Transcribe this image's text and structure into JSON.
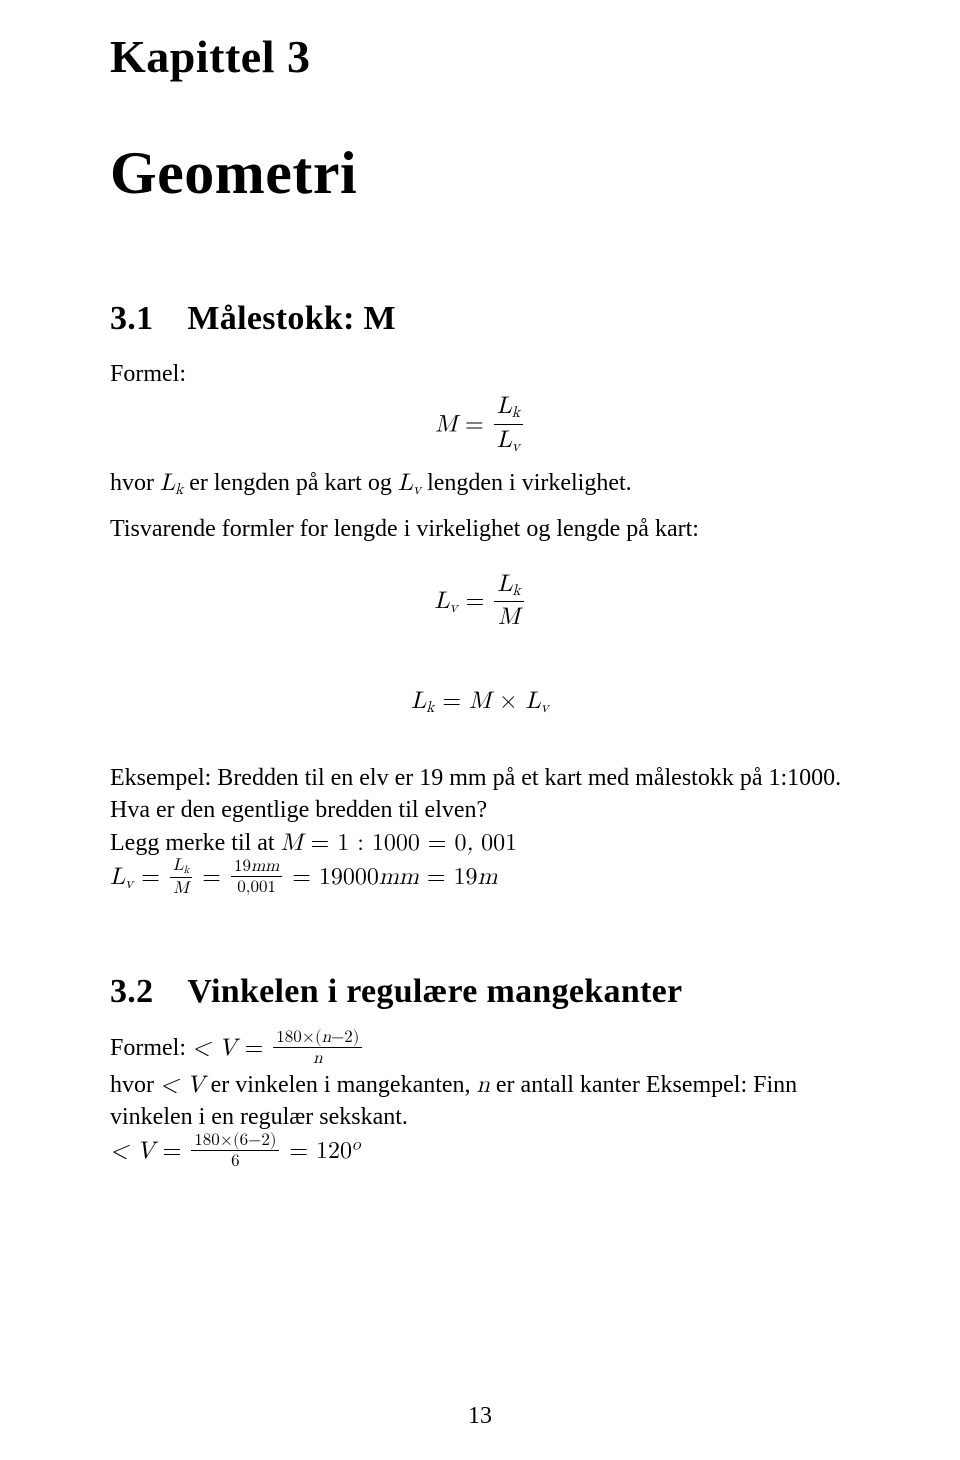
{
  "page": {
    "chapter_label": "Kapittel 3",
    "chapter_title": "Geometri",
    "page_number": "13",
    "background_color": "#ffffff",
    "text_color": "#000000",
    "font_family": "Times New Roman, serif",
    "body_fontsize_pt": 18,
    "heading_fontsize_pt": 26,
    "title_fontsize_pt": 45,
    "label_fontsize_pt": 34
  },
  "section_31": {
    "number": "3.1",
    "title": "Målestokk: M",
    "formel_label": "Formel:",
    "def_formula_html": "M <span class=\"roman\">=</span> <span class=\"frac\"><span class=\"num\">L<sub class=\"msub\">k</sub></span><span class=\"den\">L<sub class=\"msub\">v</sub></span></span>",
    "hvor_text": "hvor <span class=\"formula-inline\">L<sub class=\"msub\">k</sub></span> er lengden på kart og <span class=\"formula-inline\">L<sub class=\"msub\">v</sub></span> lengden i virkelighet.",
    "derived_intro": "Tisvarende formler for lengde i virkelighet og lengde på kart:",
    "derived_formula_1_html": "L<sub class=\"msub\">v</sub> <span class=\"roman\">=</span> <span class=\"frac\"><span class=\"num\">L<sub class=\"msub\">k</sub></span><span class=\"den\">M</span></span>",
    "derived_formula_2_html": "L<sub class=\"msub\">k</sub> <span class=\"roman\">=</span> M <span class=\"roman\">×</span> L<sub class=\"msub\">v</sub>",
    "example_line1": "Eksempel: Bredden til en elv er 19 mm på et kart med målestokk på 1:1000.",
    "example_line2": "Hva er den egentlige bredden til elven?",
    "example_line3_html": "Legg merke til at <span class=\"formula-inline\">M <span class=\"roman\">= 1 : 1000 = 0</span>, <span class=\"roman\">001</span></span>",
    "example_line4_html": "<span class=\"formula-inline\">L<sub class=\"msub\">v</sub> <span class=\"roman\">=</span> <span class=\"frac frac-sm\"><span class=\"num\">L<sub class=\"msub\">k</sub></span><span class=\"den\">M</span></span> <span class=\"roman\">=</span> <span class=\"frac frac-sm\"><span class=\"num\"><span class=\"roman\">19</span>mm</span><span class=\"den\"><span class=\"roman\">0,001</span></span></span> <span class=\"roman\">= 19000</span>mm <span class=\"roman\">= 19</span>m</span>"
  },
  "section_32": {
    "number": "3.2",
    "title": "Vinkelen i regulære mangekanter",
    "formula_line_html": "Formel: <span class=\"formula-inline\">&lt; V <span class=\"roman\">=</span> <span class=\"frac frac-sm\"><span class=\"num\"><span class=\"roman\">180×(</span>n<span class=\"roman\">−2)</span></span><span class=\"den\">n</span></span></span>",
    "body_line1_html": "hvor <span class=\"formula-inline\">&lt; V</span> er vinkelen i mangekanten, <span class=\"formula-inline\">n</span> er antall kanter Eksempel: Finn",
    "body_line2": "vinkelen i en regulær sekskant.",
    "result_line_html": "<span class=\"formula-inline\">&lt; V <span class=\"roman\">=</span> <span class=\"frac frac-sm\"><span class=\"num\"><span class=\"roman\">180×(6−2)</span></span><span class=\"den\"><span class=\"roman\">6</span></span></span> <span class=\"roman\">= 120</span><sup class=\"msup\">o</sup></span>"
  }
}
